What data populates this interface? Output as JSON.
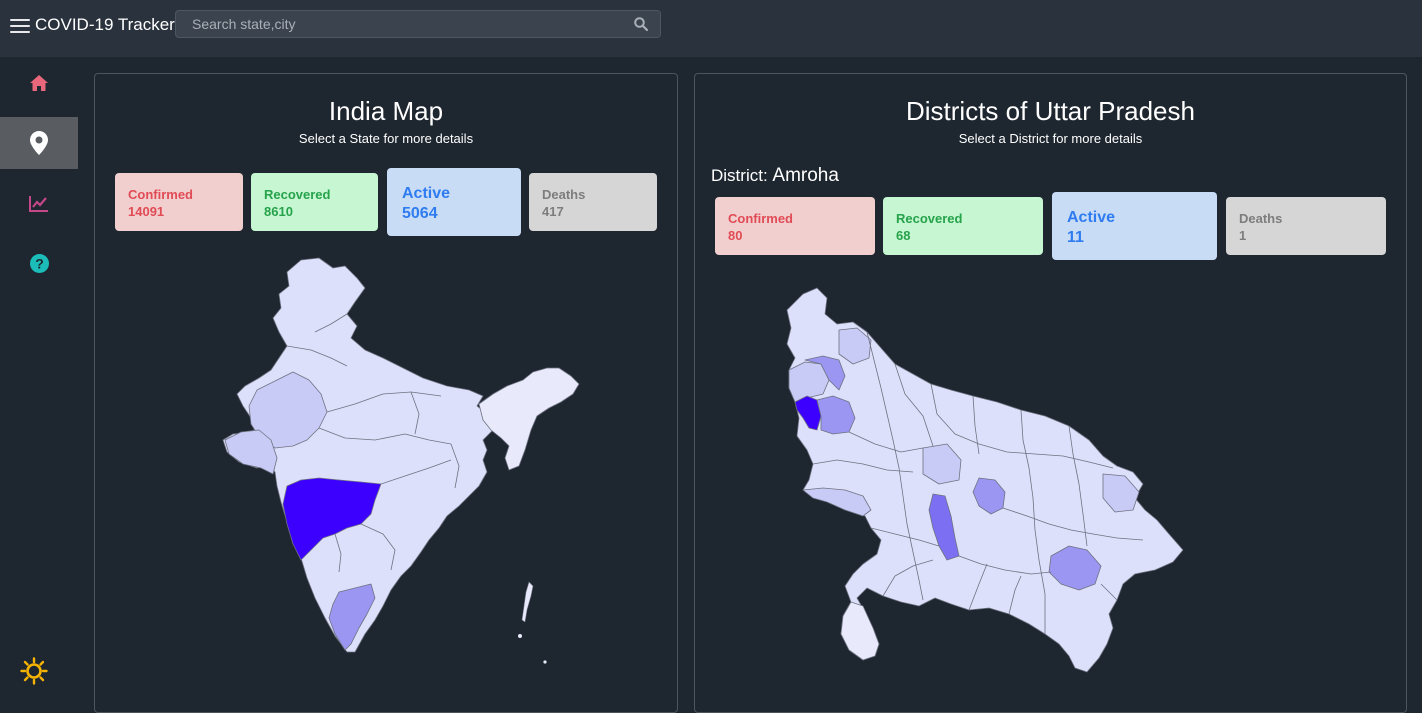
{
  "app": {
    "title": "COVID-19 Tracker"
  },
  "search": {
    "placeholder": "Search state,city"
  },
  "sidebar": {
    "items": [
      {
        "icon": "home-icon",
        "color": "#e8677a",
        "active": false
      },
      {
        "icon": "map-pin-icon",
        "color": "#ffffff",
        "active": true
      },
      {
        "icon": "chart-line-icon",
        "color": "#c4478a",
        "active": false
      },
      {
        "icon": "help-icon",
        "color": "#1cbdb8",
        "active": false
      }
    ],
    "theme_icon": "sun-icon",
    "theme_color": "#f5b400"
  },
  "india": {
    "title": "India Map",
    "subtitle": "Select a State for more details",
    "stats": {
      "confirmed": {
        "label": "Confirmed",
        "value": "14091"
      },
      "recovered": {
        "label": "Recovered",
        "value": "8610"
      },
      "active": {
        "label": "Active",
        "value": "5064"
      },
      "deaths": {
        "label": "Deaths",
        "value": "417"
      }
    }
  },
  "state": {
    "title": "Districts of Uttar Pradesh",
    "subtitle": "Select a District for more details",
    "district_label": "District:",
    "district_name": "Amroha",
    "stats": {
      "confirmed": {
        "label": "Confirmed",
        "value": "80"
      },
      "recovered": {
        "label": "Recovered",
        "value": "68"
      },
      "active": {
        "label": "Active",
        "value": "11"
      },
      "deaths": {
        "label": "Deaths",
        "value": "1"
      }
    }
  },
  "colors": {
    "map_base": "#dde0fa",
    "map_light": "#e8eafc",
    "map_mid": "#c9cbf7",
    "map_medium": "#9a96f2",
    "map_strong": "#7d6ff2",
    "map_max": "#3c00ff",
    "map_border": "#6e7281"
  }
}
